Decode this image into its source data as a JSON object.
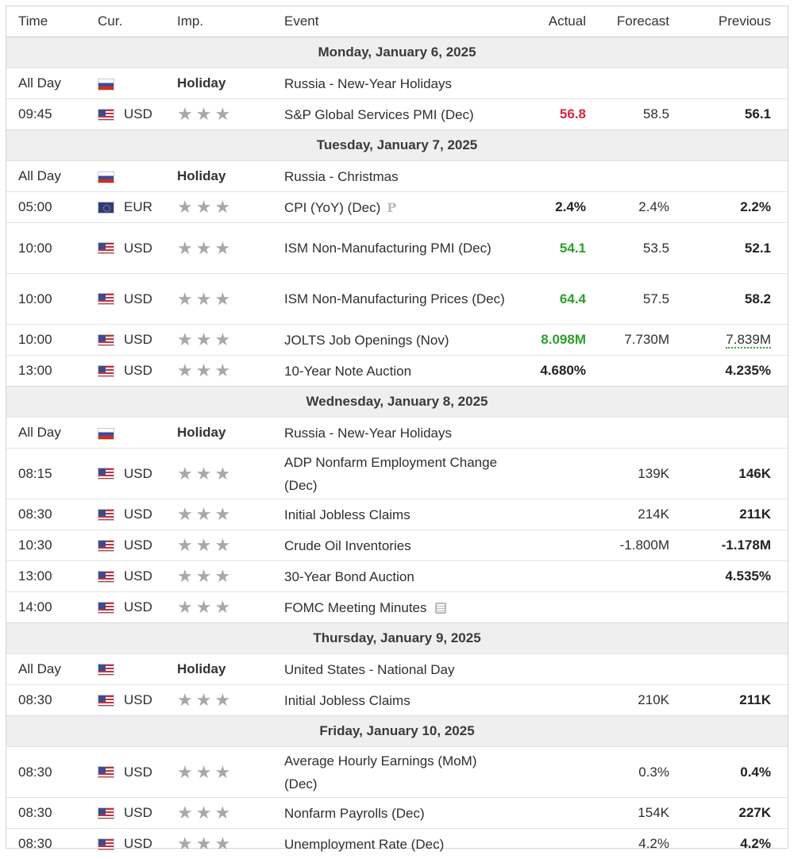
{
  "columns": {
    "time": "Time",
    "currency": "Cur.",
    "importance": "Imp.",
    "event": "Event",
    "actual": "Actual",
    "forecast": "Forecast",
    "previous": "Previous"
  },
  "colors": {
    "negative": "#d7263d",
    "positive": "#2ca02c",
    "stars": "#a8a8a8"
  },
  "days": [
    {
      "label": "Monday, January 6, 2025",
      "events": [
        {
          "time": "All Day",
          "flag": "ru",
          "currency": "",
          "importance": "Holiday",
          "event": "Russia - New-Year Holidays",
          "actual": "",
          "forecast": "",
          "previous": ""
        },
        {
          "time": "09:45",
          "flag": "us",
          "currency": "USD",
          "importance": "★★★",
          "event": "S&P Global Services PMI (Dec)",
          "actual": "56.8",
          "actual_style": "red",
          "forecast": "58.5",
          "previous": "56.1"
        }
      ]
    },
    {
      "label": "Tuesday, January 7, 2025",
      "events": [
        {
          "time": "All Day",
          "flag": "ru",
          "currency": "",
          "importance": "Holiday",
          "event": "Russia - Christmas",
          "actual": "",
          "forecast": "",
          "previous": ""
        },
        {
          "time": "05:00",
          "flag": "eu",
          "currency": "EUR",
          "importance": "★★★",
          "event": "CPI (YoY) (Dec)",
          "icon": "preliminary-icon",
          "icon_text": "P",
          "actual": "2.4%",
          "actual_style": "bold",
          "forecast": "2.4%",
          "previous": "2.2%"
        },
        {
          "time": "10:00",
          "flag": "us",
          "currency": "USD",
          "importance": "★★★",
          "event": "ISM Non-Manufacturing PMI (Dec)",
          "actual": "54.1",
          "actual_style": "green",
          "forecast": "53.5",
          "previous": "52.1"
        },
        {
          "time": "10:00",
          "flag": "us",
          "currency": "USD",
          "importance": "★★★",
          "event": "ISM Non-Manufacturing Prices (Dec)",
          "actual": "64.4",
          "actual_style": "green",
          "forecast": "57.5",
          "previous": "58.2"
        },
        {
          "time": "10:00",
          "flag": "us",
          "currency": "USD",
          "importance": "★★★",
          "event": "JOLTS Job Openings (Nov)",
          "actual": "8.098M",
          "actual_style": "green",
          "forecast": "7.730M",
          "previous": "7.839M",
          "previous_style": "green-revised"
        },
        {
          "time": "13:00",
          "flag": "us",
          "currency": "USD",
          "importance": "★★★",
          "event": "10-Year Note Auction",
          "actual": "4.680%",
          "actual_style": "bold",
          "forecast": "",
          "previous": "4.235%"
        }
      ]
    },
    {
      "label": "Wednesday, January 8, 2025",
      "events": [
        {
          "time": "All Day",
          "flag": "ru",
          "currency": "",
          "importance": "Holiday",
          "event": "Russia - New-Year Holidays",
          "actual": "",
          "forecast": "",
          "previous": ""
        },
        {
          "time": "08:15",
          "flag": "us",
          "currency": "USD",
          "importance": "★★★",
          "event": "ADP Nonfarm Employment Change (Dec)",
          "actual": "",
          "forecast": "139K",
          "previous": "146K"
        },
        {
          "time": "08:30",
          "flag": "us",
          "currency": "USD",
          "importance": "★★★",
          "event": "Initial Jobless Claims",
          "actual": "",
          "forecast": "214K",
          "previous": "211K"
        },
        {
          "time": "10:30",
          "flag": "us",
          "currency": "USD",
          "importance": "★★★",
          "event": "Crude Oil Inventories",
          "actual": "",
          "forecast": "-1.800M",
          "previous": "-1.178M"
        },
        {
          "time": "13:00",
          "flag": "us",
          "currency": "USD",
          "importance": "★★★",
          "event": "30-Year Bond Auction",
          "actual": "",
          "forecast": "",
          "previous": "4.535%"
        },
        {
          "time": "14:00",
          "flag": "us",
          "currency": "USD",
          "importance": "★★★",
          "event": "FOMC Meeting Minutes",
          "icon": "document-icon",
          "actual": "",
          "forecast": "",
          "previous": ""
        }
      ]
    },
    {
      "label": "Thursday, January 9, 2025",
      "events": [
        {
          "time": "All Day",
          "flag": "us",
          "currency": "",
          "importance": "Holiday",
          "event": "United States - National Day",
          "actual": "",
          "forecast": "",
          "previous": ""
        },
        {
          "time": "08:30",
          "flag": "us",
          "currency": "USD",
          "importance": "★★★",
          "event": "Initial Jobless Claims",
          "actual": "",
          "forecast": "210K",
          "previous": "211K"
        }
      ]
    },
    {
      "label": "Friday, January 10, 2025",
      "events": [
        {
          "time": "08:30",
          "flag": "us",
          "currency": "USD",
          "importance": "★★★",
          "event": "Average Hourly Earnings (MoM) (Dec)",
          "actual": "",
          "forecast": "0.3%",
          "previous": "0.4%"
        },
        {
          "time": "08:30",
          "flag": "us",
          "currency": "USD",
          "importance": "★★★",
          "event": "Nonfarm Payrolls (Dec)",
          "actual": "",
          "forecast": "154K",
          "previous": "227K"
        },
        {
          "time": "08:30",
          "flag": "us",
          "currency": "USD",
          "importance": "★★★",
          "event": "Unemployment Rate (Dec)",
          "actual": "",
          "forecast": "4.2%",
          "previous": "4.2%"
        }
      ]
    }
  ]
}
